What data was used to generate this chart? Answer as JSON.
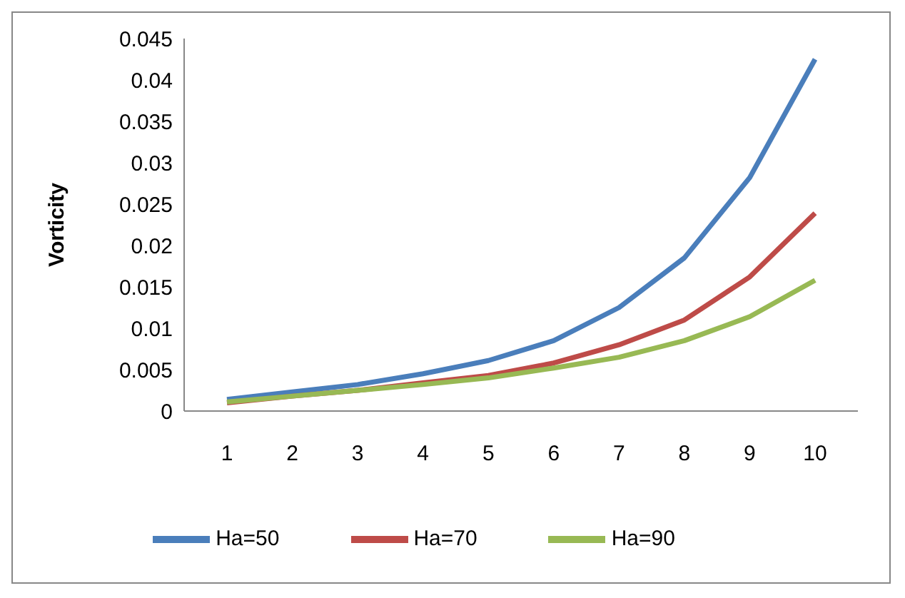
{
  "chart_data": {
    "type": "line",
    "ylabel": "Vorticity",
    "categories": [
      "1",
      "2",
      "3",
      "4",
      "5",
      "6",
      "7",
      "8",
      "9",
      "10"
    ],
    "series": [
      {
        "name": "Ha=50",
        "color": "#4a7ebb",
        "values": [
          0.0014,
          0.0023,
          0.0032,
          0.0045,
          0.0061,
          0.0085,
          0.0125,
          0.0185,
          0.0282,
          0.0425
        ]
      },
      {
        "name": "Ha=70",
        "color": "#be4b48",
        "values": [
          0.001,
          0.0018,
          0.0025,
          0.0034,
          0.0043,
          0.0058,
          0.008,
          0.011,
          0.0162,
          0.0239
        ]
      },
      {
        "name": "Ha=90",
        "color": "#98b954",
        "values": [
          0.0011,
          0.0018,
          0.0025,
          0.0032,
          0.004,
          0.0052,
          0.0065,
          0.0085,
          0.0114,
          0.0158
        ]
      }
    ],
    "ylim": [
      0,
      0.045
    ],
    "yticks": [
      0,
      0.005,
      0.01,
      0.015,
      0.02,
      0.025,
      0.03,
      0.035,
      0.04,
      0.045
    ],
    "grid": false,
    "legend": "bottom",
    "marker": "none",
    "line_style": "solid"
  }
}
